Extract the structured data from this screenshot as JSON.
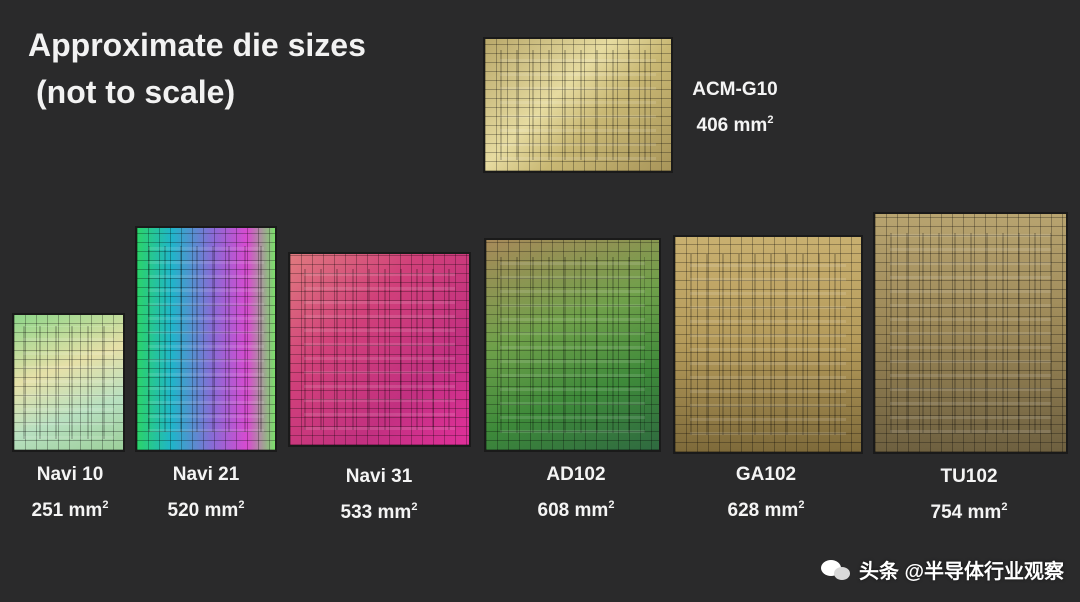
{
  "title": {
    "line1": "Approximate die sizes",
    "line2": "(not to scale)"
  },
  "dies": {
    "acm_g10": {
      "name": "ACM-G10",
      "size": "406 mm",
      "unit_sup": "2"
    },
    "navi10": {
      "name": "Navi 10",
      "size": "251 mm",
      "unit_sup": "2"
    },
    "navi21": {
      "name": "Navi 21",
      "size": "520 mm",
      "unit_sup": "2"
    },
    "navi31": {
      "name": "Navi 31",
      "size": "533 mm",
      "unit_sup": "2"
    },
    "ad102": {
      "name": "AD102",
      "size": "608 mm",
      "unit_sup": "2"
    },
    "ga102": {
      "name": "GA102",
      "size": "628 mm",
      "unit_sup": "2"
    },
    "tu102": {
      "name": "TU102",
      "size": "754 mm",
      "unit_sup": "2"
    }
  },
  "watermark": {
    "text": "头条 @半导体行业观察",
    "icon": "wechat-icon"
  }
}
